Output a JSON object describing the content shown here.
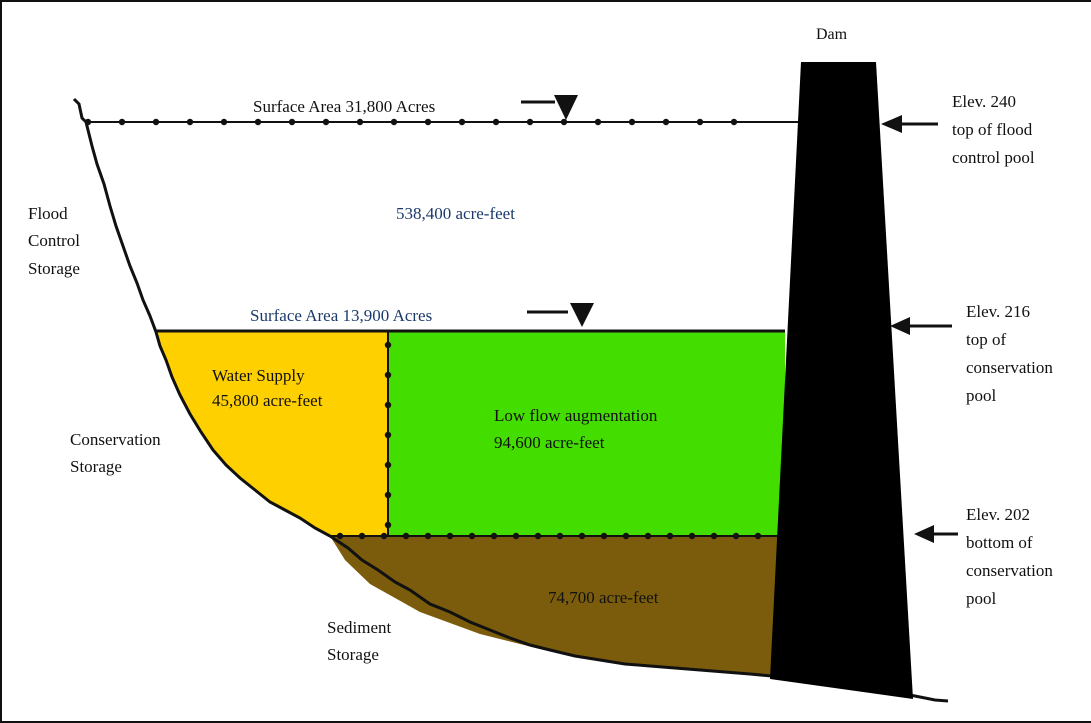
{
  "diagram": {
    "dam_label": "Dam",
    "flood_surface_label": "Surface Area 31,800 Acres",
    "conservation_surface_label": "Surface Area 13,900 Acres",
    "flood_volume": "538,400 acre-feet",
    "water_supply": {
      "line1": "Water Supply",
      "line2": "45,800 acre-feet"
    },
    "low_flow": {
      "line1": "Low flow augmentation",
      "line2": "94,600 acre-feet"
    },
    "sediment_volume": "74,700 acre-feet",
    "storage_labels": {
      "flood": [
        "Flood",
        "Control",
        "Storage"
      ],
      "conservation": [
        "Conservation",
        "Storage"
      ],
      "sediment": [
        "Sediment",
        "Storage"
      ]
    },
    "elevations": {
      "flood_pool": [
        "Elev. 240",
        "top of flood",
        "control pool"
      ],
      "top_conservation": [
        "Elev. 216",
        "top of",
        "conservation",
        "pool"
      ],
      "bottom_conservation": [
        "Elev. 202",
        "bottom of",
        "conservation",
        "pool"
      ]
    },
    "colors": {
      "water_supply": "#ffd000",
      "low_flow": "#44dd00",
      "sediment": "#7a5c0c",
      "dam": "#000000",
      "volume_text": "#1b3a6b"
    }
  }
}
